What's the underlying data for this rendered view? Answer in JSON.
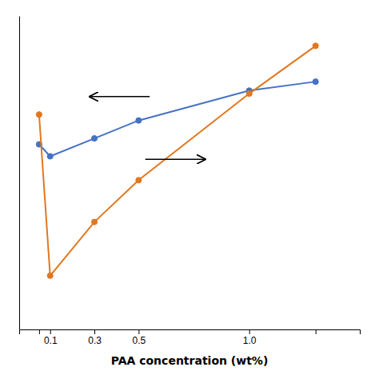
{
  "chart_data": {
    "type": "line",
    "xlabel": "PAA concentration (wt%)",
    "x": [
      0.05,
      0.1,
      0.3,
      0.5,
      1.0,
      1.3
    ],
    "series": [
      {
        "color": "#4472C4",
        "values": [
          0.72,
          0.68,
          0.74,
          0.8,
          0.9,
          0.93
        ]
      },
      {
        "color": "#E07820",
        "values": [
          0.82,
          0.28,
          0.46,
          0.6,
          0.89,
          1.05
        ]
      }
    ],
    "marker": "circle",
    "line_style": "solid",
    "xlim": [
      -0.04,
      1.5
    ],
    "ylim": [
      0.1,
      1.15
    ],
    "xticks": [
      {
        "value": 0.05,
        "label": null
      },
      0.1,
      0.3,
      0.5,
      {
        "value": 1.0,
        "label": "1.0"
      },
      {
        "value": 1.3,
        "label": null
      }
    ],
    "tick_labels": "x",
    "grid": false,
    "arrows": [
      {
        "x_from": 0.55,
        "x_to": 0.28,
        "y": 0.88
      },
      {
        "x_from": 0.53,
        "x_to": 0.8,
        "y": 0.67
      }
    ]
  }
}
